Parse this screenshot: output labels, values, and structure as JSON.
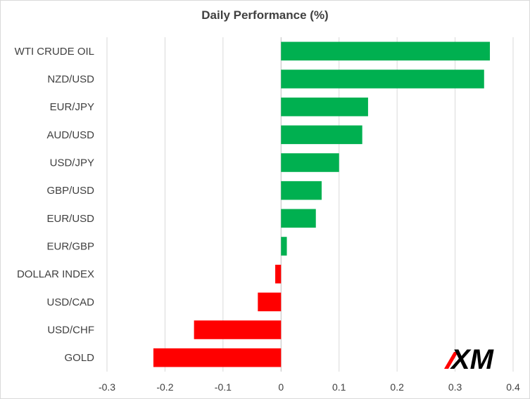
{
  "chart_data": {
    "type": "bar",
    "orientation": "horizontal",
    "title": "Daily Performance  (%)",
    "xlabel": "",
    "ylabel": "",
    "xlim": [
      -0.3,
      0.4
    ],
    "x_ticks": [
      "-0.3",
      "-0.2",
      "-0.1",
      "0",
      "0.1",
      "0.2",
      "0.3",
      "0.4"
    ],
    "grid": "vertical",
    "categories": [
      "WTI CRUDE OIL",
      "NZD/USD",
      "EUR/JPY",
      "AUD/USD",
      "USD/JPY",
      "GBP/USD",
      "EUR/USD",
      "EUR/GBP",
      "DOLLAR INDEX",
      "USD/CAD",
      "USD/CHF",
      "GOLD"
    ],
    "values": [
      0.36,
      0.35,
      0.15,
      0.14,
      0.1,
      0.07,
      0.06,
      0.01,
      -0.01,
      -0.04,
      -0.15,
      -0.22
    ],
    "positive_color": "#00b050",
    "negative_color": "#ff0000"
  },
  "logo": {
    "text": "XM",
    "accent": "#ff0000"
  }
}
